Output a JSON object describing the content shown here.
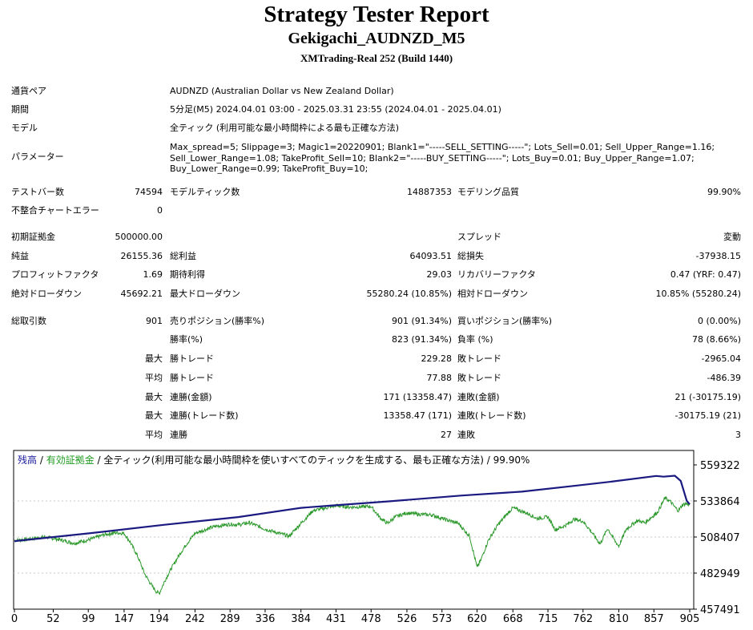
{
  "report": {
    "title": "Strategy Tester Report",
    "subtitle": "Gekigachi_AUDNZD_M5",
    "build": "XMTrading-Real 252 (Build 1440)"
  },
  "info": [
    {
      "label": "通貨ペア",
      "value": "AUDNZD (Australian Dollar vs New Zealand Dollar)"
    },
    {
      "label": "期間",
      "value": "5分足(M5) 2024.04.01 03:00 - 2025.03.31 23:55 (2024.04.01 - 2025.04.01)"
    },
    {
      "label": "モデル",
      "value": "全ティック (利用可能な最小時間枠による最も正確な方法)"
    }
  ],
  "parameters": {
    "label": "パラメーター",
    "lines": [
      "Max_spread=5; Slippage=3; Magic1=20220901; Blank1=\"-----SELL_SETTING-----\"; Lots_Sell=0.01; Sell_Upper_Range=1.16;",
      "Sell_Lower_Range=1.08; TakeProfit_Sell=10; Blank2=\"-----BUY_SETTING-----\"; Lots_Buy=0.01; Buy_Upper_Range=1.07;",
      "Buy_Lower_Range=0.99; TakeProfit_Buy=10;"
    ]
  },
  "stats": {
    "bars_label": "テストバー数",
    "bars": "74594",
    "ticks_label": "モデルティック数",
    "ticks": "14887353",
    "quality_label": "モデリング品質",
    "quality": "99.90%",
    "errors_label": "不整合チャートエラー",
    "errors": "0",
    "deposit_label": "初期証拠金",
    "deposit": "500000.00",
    "spread_label": "スプレッド",
    "spread": "変動",
    "net_label": "純益",
    "net": "26155.36",
    "gross_profit_label": "総利益",
    "gross_profit": "64093.51",
    "gross_loss_label": "総損失",
    "gross_loss": "-37938.15",
    "pf_label": "プロフィットファクタ",
    "pf": "1.69",
    "expected_label": "期待利得",
    "expected": "29.03",
    "recovery_label": "リカバリーファクタ",
    "recovery": "0.47 (YRF: 0.47)",
    "abs_dd_label": "絶対ドローダウン",
    "abs_dd": "45692.21",
    "max_dd_label": "最大ドローダウン",
    "max_dd": "55280.24 (10.85%)",
    "rel_dd_label": "相対ドローダウン",
    "rel_dd": "10.85% (55280.24)",
    "trades_label": "総取引数",
    "trades": "901",
    "short_label": "売りポジション(勝率%)",
    "short": "901 (91.34%)",
    "long_label": "買いポジション(勝率%)",
    "long": "0 (0.00%)",
    "win_rate_label": "勝率(%)",
    "win_rate": "823 (91.34%)",
    "loss_rate_label": "負率 (%)",
    "loss_rate": "78 (8.66%)",
    "max_label": "最大",
    "avg_label": "平均",
    "win_trade_label": "勝トレード",
    "loss_trade_label": "敗トレード",
    "max_win": "229.28",
    "max_loss": "-2965.04",
    "avg_win": "77.88",
    "avg_loss": "-486.39",
    "cons_wins_money_label": "連勝(金額)",
    "cons_wins_money": "171 (13358.47)",
    "cons_losses_money_label": "連敗(金額)",
    "cons_losses_money": "21 (-30175.19)",
    "cons_wins_count_label": "連勝(トレード数)",
    "cons_wins_count": "13358.47 (171)",
    "cons_losses_count_label": "連敗(トレード数)",
    "cons_losses_count": "-30175.19 (21)",
    "avg_cons_wins_label": "連勝",
    "avg_cons_wins": "27",
    "avg_cons_losses_label": "連敗",
    "avg_cons_losses": "3"
  },
  "chart_legend": {
    "balance": "残高",
    "sep1": " / ",
    "equity": "有効証拠金",
    "rest": " / 全ティック(利用可能な最小時間枠を使いすべてのティックを生成する、最も正確な方法) / 99.90%"
  },
  "colors": {
    "balance": "#1a1a80",
    "equity": "#2e9a2e",
    "grid": "#c8c8c8"
  },
  "chart_data": {
    "type": "line",
    "x_ticks": [
      0,
      52,
      99,
      147,
      194,
      242,
      289,
      336,
      384,
      431,
      478,
      526,
      573,
      620,
      668,
      715,
      762,
      810,
      857,
      905
    ],
    "y_ticks": [
      559322,
      533864,
      508407,
      482949,
      457491
    ],
    "xlim": [
      0,
      905
    ],
    "ylim": [
      457491,
      559322
    ],
    "series": [
      {
        "name": "残高",
        "x": [
          0,
          100,
          200,
          300,
          384,
          430,
          500,
          600,
          680,
          750,
          800,
          860,
          870,
          885,
          893,
          901,
          905
        ],
        "y": [
          505500,
          511000,
          517000,
          522500,
          529000,
          530800,
          533500,
          537700,
          540400,
          544500,
          547500,
          551500,
          551000,
          551700,
          548000,
          534000,
          531500
        ]
      },
      {
        "name": "有効証拠金",
        "x": [
          0,
          20,
          40,
          52,
          65,
          80,
          100,
          120,
          135,
          147,
          155,
          165,
          175,
          183,
          190,
          194,
          202,
          210,
          220,
          230,
          242,
          255,
          270,
          289,
          300,
          315,
          336,
          355,
          368,
          384,
          400,
          431,
          450,
          478,
          490,
          500,
          510,
          526,
          540,
          560,
          573,
          595,
          610,
          620,
          625,
          635,
          648,
          660,
          668,
          678,
          690,
          700,
          715,
          725,
          740,
          750,
          762,
          772,
          785,
          795,
          805,
          810,
          820,
          835,
          845,
          862,
          872,
          880,
          885,
          890,
          895,
          900,
          905
        ],
        "y": [
          506000,
          507000,
          508500,
          507500,
          506000,
          504000,
          506500,
          510000,
          511500,
          511000,
          505000,
          495000,
          482000,
          475000,
          470000,
          468500,
          478000,
          486000,
          495000,
          503000,
          511000,
          513500,
          516000,
          517500,
          517000,
          518500,
          514000,
          511000,
          509000,
          518000,
          527000,
          530500,
          529500,
          530000,
          522000,
          518000,
          522500,
          525500,
          524500,
          524000,
          521500,
          518000,
          509000,
          487000,
          492000,
          506000,
          517000,
          524500,
          529000,
          527000,
          524500,
          521500,
          522500,
          513500,
          517000,
          521000,
          519500,
          513000,
          503500,
          514500,
          505500,
          502000,
          514000,
          520000,
          518500,
          526000,
          536000,
          533000,
          529500,
          527000,
          531000,
          532000,
          531000
        ]
      }
    ]
  }
}
